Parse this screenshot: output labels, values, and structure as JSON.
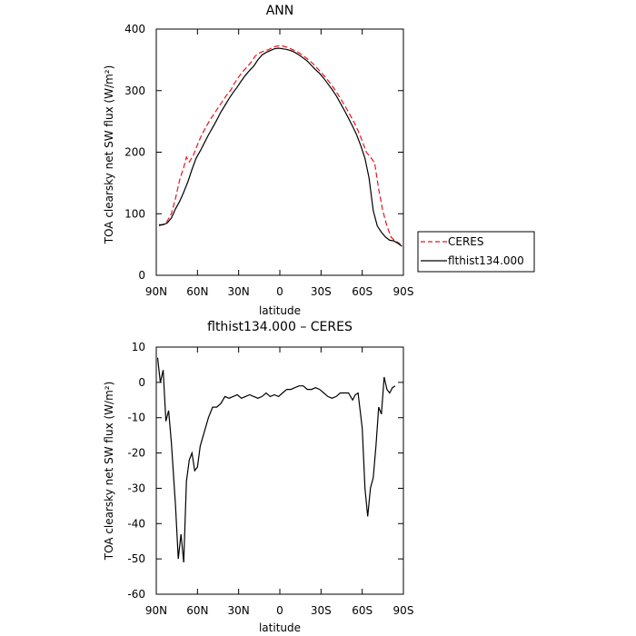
{
  "chart_data": [
    {
      "type": "line",
      "title": "ANN",
      "xlabel": "latitude",
      "ylabel": "TOA clearsky net SW flux (W/m²)",
      "xlim": [
        90,
        -90
      ],
      "ylim": [
        0,
        400
      ],
      "x_ticks": [
        {
          "value": 90,
          "label": "90N"
        },
        {
          "value": 60,
          "label": "60N"
        },
        {
          "value": 30,
          "label": "30N"
        },
        {
          "value": 0,
          "label": "0"
        },
        {
          "value": -30,
          "label": "30S"
        },
        {
          "value": -60,
          "label": "60S"
        },
        {
          "value": -90,
          "label": "90S"
        }
      ],
      "y_ticks": [
        0,
        100,
        200,
        300,
        400
      ],
      "legend": {
        "placement": "right-bottom"
      },
      "series": [
        {
          "name": "CERES",
          "color": "#e8151b",
          "dash": "dashed",
          "points": [
            [
              88,
              80
            ],
            [
              85,
              83
            ],
            [
              82,
              88
            ],
            [
              79,
              100
            ],
            [
              76,
              125
            ],
            [
              73,
              155
            ],
            [
              70,
              175
            ],
            [
              68,
              192
            ],
            [
              66,
              184
            ],
            [
              63,
              195
            ],
            [
              60,
              212
            ],
            [
              57,
              228
            ],
            [
              54,
              240
            ],
            [
              51,
              252
            ],
            [
              48,
              262
            ],
            [
              45,
              272
            ],
            [
              42,
              282
            ],
            [
              39,
              292
            ],
            [
              36,
              300
            ],
            [
              33,
              312
            ],
            [
              30,
              322
            ],
            [
              27,
              331
            ],
            [
              24,
              338
            ],
            [
              21,
              346
            ],
            [
              18,
              356
            ],
            [
              15,
              361
            ],
            [
              12,
              364
            ],
            [
              9,
              366
            ],
            [
              6,
              369
            ],
            [
              3,
              372
            ],
            [
              0,
              373
            ],
            [
              -3,
              372
            ],
            [
              -6,
              370
            ],
            [
              -9,
              367
            ],
            [
              -12,
              364
            ],
            [
              -15,
              360
            ],
            [
              -18,
              355
            ],
            [
              -21,
              350
            ],
            [
              -24,
              344
            ],
            [
              -27,
              337
            ],
            [
              -30,
              330
            ],
            [
              -33,
              322
            ],
            [
              -36,
              314
            ],
            [
              -39,
              305
            ],
            [
              -42,
              295
            ],
            [
              -45,
              284
            ],
            [
              -48,
              273
            ],
            [
              -51,
              261
            ],
            [
              -54,
              249
            ],
            [
              -57,
              235
            ],
            [
              -60,
              218
            ],
            [
              -63,
              200
            ],
            [
              -66,
              192
            ],
            [
              -69,
              183
            ],
            [
              -72,
              140
            ],
            [
              -75,
              105
            ],
            [
              -78,
              80
            ],
            [
              -81,
              62
            ],
            [
              -84,
              56
            ],
            [
              -87,
              52
            ],
            [
              -89,
              47
            ]
          ]
        },
        {
          "name": "flthist134.000",
          "color": "#000000",
          "dash": "solid",
          "points": [
            [
              88,
              82
            ],
            [
              85,
              82
            ],
            [
              82,
              85
            ],
            [
              79,
              93
            ],
            [
              76,
              108
            ],
            [
              73,
              120
            ],
            [
              70,
              135
            ],
            [
              67,
              152
            ],
            [
              64,
              172
            ],
            [
              61,
              190
            ],
            [
              58,
              202
            ],
            [
              55,
              215
            ],
            [
              52,
              228
            ],
            [
              49,
              240
            ],
            [
              46,
              252
            ],
            [
              43,
              265
            ],
            [
              40,
              276
            ],
            [
              37,
              287
            ],
            [
              34,
              297
            ],
            [
              31,
              306
            ],
            [
              28,
              316
            ],
            [
              25,
              325
            ],
            [
              22,
              333
            ],
            [
              19,
              340
            ],
            [
              16,
              350
            ],
            [
              13,
              358
            ],
            [
              10,
              362
            ],
            [
              7,
              365
            ],
            [
              4,
              368
            ],
            [
              1,
              369
            ],
            [
              -2,
              368
            ],
            [
              -5,
              367
            ],
            [
              -8,
              365
            ],
            [
              -11,
              362
            ],
            [
              -14,
              358
            ],
            [
              -17,
              353
            ],
            [
              -20,
              348
            ],
            [
              -23,
              341
            ],
            [
              -26,
              334
            ],
            [
              -29,
              328
            ],
            [
              -32,
              320
            ],
            [
              -35,
              311
            ],
            [
              -38,
              302
            ],
            [
              -41,
              292
            ],
            [
              -44,
              280
            ],
            [
              -47,
              268
            ],
            [
              -50,
              255
            ],
            [
              -53,
              242
            ],
            [
              -56,
              228
            ],
            [
              -59,
              210
            ],
            [
              -62,
              190
            ],
            [
              -65,
              158
            ],
            [
              -68,
              105
            ],
            [
              -71,
              80
            ],
            [
              -74,
              70
            ],
            [
              -77,
              62
            ],
            [
              -80,
              57
            ],
            [
              -83,
              56
            ],
            [
              -86,
              52
            ],
            [
              -89,
              47
            ]
          ]
        }
      ]
    },
    {
      "type": "line",
      "title": "flthist134.000 – CERES",
      "xlabel": "latitude",
      "ylabel": "TOA clearsky net SW flux (W/m²)",
      "xlim": [
        90,
        -90
      ],
      "ylim": [
        -60,
        10
      ],
      "x_ticks": [
        {
          "value": 90,
          "label": "90N"
        },
        {
          "value": 60,
          "label": "60N"
        },
        {
          "value": 30,
          "label": "30N"
        },
        {
          "value": 0,
          "label": "0"
        },
        {
          "value": -30,
          "label": "30S"
        },
        {
          "value": -60,
          "label": "60S"
        },
        {
          "value": -90,
          "label": "90S"
        }
      ],
      "y_ticks": [
        -60,
        -50,
        -40,
        -30,
        -20,
        -10,
        0,
        10
      ],
      "series": [
        {
          "color": "#000000",
          "dash": "solid",
          "points": [
            [
              89,
              7
            ],
            [
              88.5,
              5
            ],
            [
              87,
              0
            ],
            [
              85,
              3.5
            ],
            [
              83,
              -11
            ],
            [
              81,
              -8
            ],
            [
              79,
              -17
            ],
            [
              76,
              -35
            ],
            [
              74,
              -50
            ],
            [
              72,
              -43
            ],
            [
              70,
              -51
            ],
            [
              68,
              -28
            ],
            [
              66,
              -22
            ],
            [
              64,
              -20
            ],
            [
              62,
              -25
            ],
            [
              60,
              -24
            ],
            [
              58,
              -18
            ],
            [
              55,
              -14
            ],
            [
              52,
              -10
            ],
            [
              49,
              -7
            ],
            [
              46,
              -7
            ],
            [
              43,
              -6
            ],
            [
              40,
              -4
            ],
            [
              37,
              -4.5
            ],
            [
              34,
              -4
            ],
            [
              31,
              -3.5
            ],
            [
              28,
              -4.5
            ],
            [
              25,
              -4
            ],
            [
              22,
              -3.5
            ],
            [
              19,
              -4
            ],
            [
              16,
              -4.5
            ],
            [
              13,
              -4
            ],
            [
              10,
              -3
            ],
            [
              7,
              -4
            ],
            [
              4,
              -3.5
            ],
            [
              1,
              -4
            ],
            [
              -2,
              -3
            ],
            [
              -5,
              -2
            ],
            [
              -8,
              -2
            ],
            [
              -11,
              -1.5
            ],
            [
              -14,
              -1
            ],
            [
              -17,
              -1
            ],
            [
              -20,
              -2
            ],
            [
              -23,
              -2
            ],
            [
              -26,
              -1.5
            ],
            [
              -29,
              -2
            ],
            [
              -32,
              -3
            ],
            [
              -35,
              -4
            ],
            [
              -38,
              -4.5
            ],
            [
              -41,
              -4
            ],
            [
              -44,
              -3
            ],
            [
              -47,
              -3
            ],
            [
              -50,
              -3
            ],
            [
              -53,
              -5
            ],
            [
              -55,
              -3.5
            ],
            [
              -57,
              -3
            ],
            [
              -60,
              -13
            ],
            [
              -62,
              -30
            ],
            [
              -64,
              -38
            ],
            [
              -66,
              -30
            ],
            [
              -68,
              -27
            ],
            [
              -70,
              -18
            ],
            [
              -72,
              -7
            ],
            [
              -74,
              -9
            ],
            [
              -76,
              1.5
            ],
            [
              -78,
              -2
            ],
            [
              -80,
              -3
            ],
            [
              -82,
              -1.5
            ],
            [
              -84,
              -1
            ]
          ]
        }
      ]
    }
  ]
}
